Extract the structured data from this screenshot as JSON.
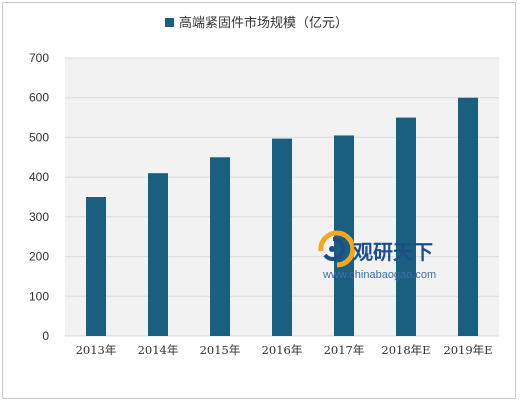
{
  "chart_data": {
    "type": "bar",
    "title": "",
    "xlabel": "",
    "ylabel": "",
    "categories": [
      "2013年",
      "2014年",
      "2015年",
      "2016年",
      "2017年",
      "2018年E",
      "2019年E"
    ],
    "series": [
      {
        "name": "高端紧固件市场规模（亿元）",
        "values": [
          350,
          410,
          450,
          497,
          505,
          550,
          600
        ],
        "color": "#1b5f80"
      }
    ],
    "ylim": [
      0,
      700
    ],
    "yticks": [
      "0",
      "100",
      "200",
      "300",
      "400",
      "500",
      "600",
      "700"
    ],
    "grid": true,
    "grid_color": "#dcdcdc",
    "plot_background": "#f2f2f2",
    "legend_position": "top-center"
  },
  "watermark": {
    "name": "观研天下",
    "url": "www.chinabaogao.com",
    "logo_icon": "chinabaogao-logo-icon",
    "colors": {
      "primary": "#1b4f8a",
      "accent": "#f5a623"
    }
  }
}
